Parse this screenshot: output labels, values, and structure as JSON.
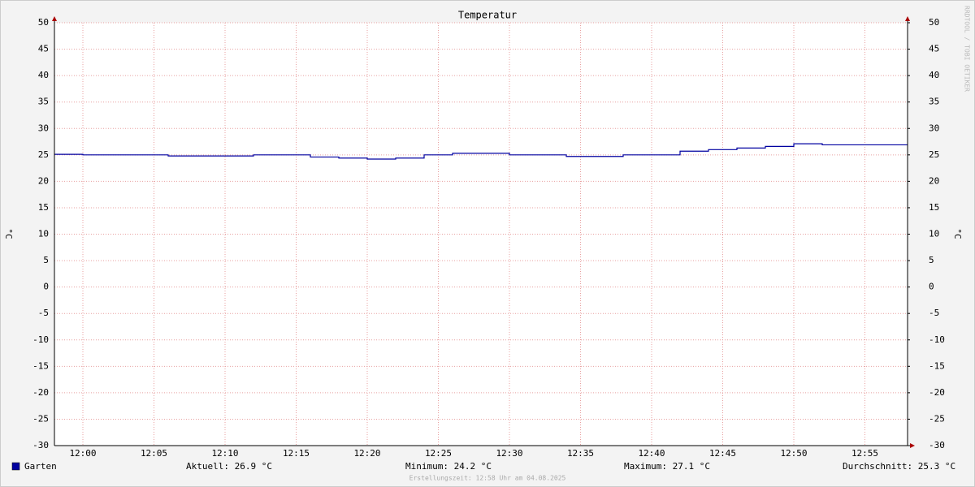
{
  "chart_data": {
    "type": "step",
    "title": "Temperatur",
    "ylabel": "°C",
    "y2label": "°C",
    "x": [
      "11:58",
      "12:00",
      "12:02",
      "12:04",
      "12:06",
      "12:08",
      "12:10",
      "12:12",
      "12:14",
      "12:16",
      "12:18",
      "12:20",
      "12:22",
      "12:24",
      "12:26",
      "12:28",
      "12:30",
      "12:32",
      "12:34",
      "12:36",
      "12:38",
      "12:40",
      "12:42",
      "12:44",
      "12:46",
      "12:48",
      "12:50",
      "12:52",
      "12:54",
      "12:56"
    ],
    "series": [
      {
        "name": "Garten",
        "color": "#0000a0",
        "values": [
          25.1,
          25.0,
          25.0,
          25.0,
          24.8,
          24.8,
          24.8,
          25.0,
          25.0,
          24.6,
          24.4,
          24.2,
          24.4,
          25.0,
          25.3,
          25.3,
          25.0,
          25.0,
          24.7,
          24.7,
          25.0,
          25.0,
          25.7,
          26.0,
          26.3,
          26.6,
          27.1,
          26.9,
          26.9,
          26.9
        ]
      }
    ],
    "xlim": [
      "11:58",
      "12:58"
    ],
    "xticks": [
      "12:00",
      "12:05",
      "12:10",
      "12:15",
      "12:20",
      "12:25",
      "12:30",
      "12:35",
      "12:40",
      "12:45",
      "12:50",
      "12:55"
    ],
    "ylim": [
      -30,
      50
    ],
    "yticks": [
      -30,
      -25,
      -20,
      -15,
      -10,
      -5,
      0,
      5,
      10,
      15,
      20,
      25,
      30,
      35,
      40,
      45,
      50
    ],
    "y2lim": [
      -30,
      50
    ],
    "y2ticks": [
      -30,
      -25,
      -20,
      -15,
      -10,
      -5,
      0,
      5,
      10,
      15,
      20,
      25,
      30,
      35,
      40,
      45,
      50
    ],
    "grid": true,
    "stats": [
      "Aktuell: 26.9 °C",
      "Minimum: 24.2 °C",
      "Maximum: 27.1 °C",
      "Durchschnitt: 25.3 °C"
    ],
    "footer": "Erstellungszeit: 12:58 Uhr am 04.08.2025",
    "watermark": "RRDTOOL / TOBI OETIKER"
  }
}
